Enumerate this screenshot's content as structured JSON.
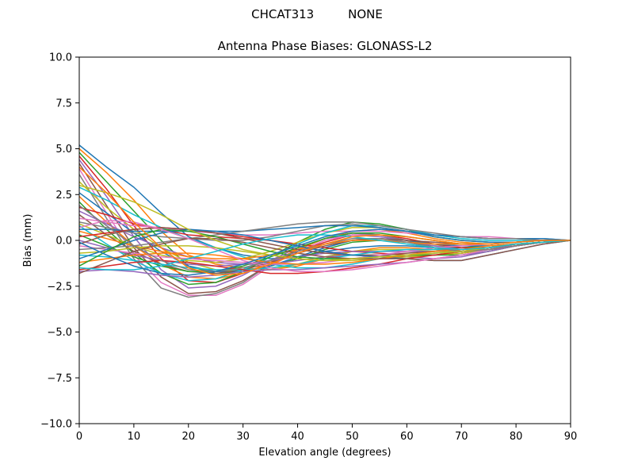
{
  "chart_data": {
    "type": "line",
    "suptitle": "CHCAT313         NONE",
    "title": "Antenna Phase Biases: GLONASS-L2",
    "xlabel": "Elevation angle (degrees)",
    "ylabel": "Bias (mm)",
    "xlim": [
      0,
      90
    ],
    "ylim": [
      -10,
      10
    ],
    "xticks": [
      0,
      10,
      20,
      30,
      40,
      50,
      60,
      70,
      80,
      90
    ],
    "xtick_labels": [
      "0",
      "10",
      "20",
      "30",
      "40",
      "50",
      "60",
      "70",
      "80",
      "90"
    ],
    "yticks": [
      -10,
      -7.5,
      -5,
      -2.5,
      0,
      2.5,
      5,
      7.5,
      10
    ],
    "ytick_labels": [
      "−10.0",
      "−7.5",
      "−5.0",
      "−2.5",
      "0.0",
      "2.5",
      "5.0",
      "7.5",
      "10.0"
    ],
    "grid": false,
    "legend": "none",
    "colors": [
      "#1f77b4",
      "#ff7f0e",
      "#2ca02c",
      "#d62728",
      "#9467bd",
      "#8c564b",
      "#e377c2",
      "#7f7f7f",
      "#bcbd22",
      "#17becf"
    ],
    "x": [
      0,
      5,
      10,
      15,
      20,
      25,
      30,
      35,
      40,
      45,
      50,
      55,
      60,
      65,
      70,
      75,
      80,
      85,
      90
    ],
    "series": [
      {
        "values": [
          5.2,
          4.0,
          2.9,
          1.5,
          0.2,
          -0.4,
          -0.8,
          -1.0,
          -0.9,
          -0.6,
          -0.4,
          -0.3,
          -0.3,
          -0.4,
          -0.4,
          -0.3,
          -0.2,
          -0.1,
          0.0
        ]
      },
      {
        "values": [
          5.0,
          3.7,
          2.2,
          0.5,
          -0.8,
          -1.3,
          -1.5,
          -1.6,
          -1.4,
          -1.0,
          -0.6,
          -0.4,
          -0.4,
          -0.5,
          -0.6,
          -0.5,
          -0.3,
          -0.1,
          0.0
        ]
      },
      {
        "values": [
          4.8,
          3.2,
          1.6,
          0.0,
          -1.4,
          -1.8,
          -1.7,
          -1.4,
          -1.0,
          -0.5,
          -0.1,
          0.0,
          -0.1,
          -0.3,
          -0.4,
          -0.3,
          -0.2,
          -0.1,
          0.0
        ]
      },
      {
        "values": [
          4.6,
          2.8,
          0.8,
          -1.0,
          -2.2,
          -2.3,
          -1.8,
          -1.2,
          -0.6,
          -0.1,
          0.3,
          0.3,
          0.1,
          -0.2,
          -0.4,
          -0.4,
          -0.3,
          -0.1,
          0.0
        ]
      },
      {
        "values": [
          4.4,
          2.4,
          0.2,
          -1.6,
          -2.6,
          -2.5,
          -1.9,
          -1.1,
          -0.4,
          0.1,
          0.3,
          0.2,
          0.0,
          -0.3,
          -0.5,
          -0.4,
          -0.3,
          -0.1,
          0.0
        ]
      },
      {
        "values": [
          4.2,
          1.9,
          -0.4,
          -2.0,
          -2.9,
          -2.8,
          -2.2,
          -1.3,
          -0.5,
          0.1,
          0.4,
          0.3,
          0.0,
          -0.4,
          -0.6,
          -0.5,
          -0.3,
          -0.1,
          0.0
        ]
      },
      {
        "values": [
          3.9,
          1.5,
          -0.8,
          -2.3,
          -3.0,
          -3.0,
          -2.4,
          -1.4,
          -0.6,
          0.0,
          0.3,
          0.3,
          0.0,
          -0.4,
          -0.6,
          -0.5,
          -0.3,
          -0.1,
          0.0
        ]
      },
      {
        "values": [
          3.6,
          1.2,
          -1.0,
          -2.6,
          -3.1,
          -2.9,
          -2.3,
          -1.3,
          -0.5,
          0.1,
          0.4,
          0.3,
          0.0,
          -0.4,
          -0.6,
          -0.5,
          -0.3,
          -0.1,
          0.0
        ]
      },
      {
        "values": [
          3.2,
          1.8,
          0.6,
          -0.4,
          -1.2,
          -1.6,
          -1.7,
          -1.6,
          -1.3,
          -0.9,
          -0.6,
          -0.5,
          -0.5,
          -0.6,
          -0.6,
          -0.5,
          -0.3,
          -0.1,
          0.0
        ]
      },
      {
        "values": [
          2.9,
          2.2,
          1.4,
          0.7,
          0.1,
          -0.4,
          -0.9,
          -1.3,
          -1.5,
          -1.5,
          -1.3,
          -1.0,
          -0.8,
          -0.7,
          -0.6,
          -0.5,
          -0.3,
          -0.1,
          0.0
        ]
      },
      {
        "values": [
          2.6,
          1.5,
          0.4,
          -0.6,
          -1.4,
          -1.7,
          -1.7,
          -1.4,
          -0.9,
          -0.4,
          0.0,
          0.1,
          0.0,
          -0.2,
          -0.3,
          -0.3,
          -0.2,
          -0.1,
          0.0
        ]
      },
      {
        "values": [
          2.4,
          1.0,
          -0.3,
          -1.3,
          -2.0,
          -2.1,
          -1.8,
          -1.2,
          -0.5,
          0.1,
          0.5,
          0.6,
          0.4,
          0.1,
          -0.1,
          -0.2,
          -0.1,
          0.0,
          0.0
        ]
      },
      {
        "values": [
          2.1,
          0.6,
          -0.7,
          -1.8,
          -2.4,
          -2.3,
          -1.7,
          -0.9,
          -0.1,
          0.6,
          1.0,
          0.9,
          0.6,
          0.2,
          0.0,
          -0.1,
          -0.1,
          0.0,
          0.0
        ]
      },
      {
        "values": [
          1.8,
          1.4,
          0.9,
          0.6,
          0.3,
          0.2,
          0.1,
          0.0,
          -0.2,
          -0.4,
          -0.6,
          -0.7,
          -0.8,
          -0.8,
          -0.7,
          -0.5,
          -0.3,
          -0.1,
          0.0
        ]
      },
      {
        "values": [
          1.6,
          0.9,
          0.2,
          -0.4,
          -0.9,
          -1.2,
          -1.3,
          -1.3,
          -1.1,
          -0.9,
          -0.8,
          -0.8,
          -0.9,
          -1.0,
          -0.9,
          -0.6,
          -0.3,
          -0.1,
          0.0
        ]
      },
      {
        "values": [
          1.4,
          0.3,
          -0.6,
          -1.3,
          -1.7,
          -1.8,
          -1.6,
          -1.2,
          -0.7,
          -0.3,
          0.0,
          0.1,
          0.0,
          -0.1,
          -0.2,
          -0.2,
          -0.1,
          0.0,
          0.0
        ]
      },
      {
        "values": [
          1.2,
          1.0,
          0.8,
          0.7,
          0.5,
          0.4,
          0.3,
          0.3,
          0.4,
          0.5,
          0.5,
          0.5,
          0.4,
          0.3,
          0.2,
          0.2,
          0.1,
          0.0,
          0.0
        ]
      },
      {
        "values": [
          1.0,
          0.7,
          0.4,
          0.2,
          0.1,
          0.0,
          0.0,
          0.2,
          0.5,
          0.8,
          0.9,
          0.7,
          0.5,
          0.3,
          0.2,
          0.1,
          0.1,
          0.1,
          0.0
        ]
      },
      {
        "values": [
          0.9,
          0.3,
          -0.3,
          -0.8,
          -1.1,
          -1.2,
          -1.0,
          -0.6,
          -0.1,
          0.4,
          0.7,
          0.7,
          0.5,
          0.2,
          0.0,
          -0.1,
          -0.1,
          0.0,
          0.0
        ]
      },
      {
        "values": [
          0.8,
          -0.2,
          -1.1,
          -1.8,
          -2.2,
          -2.1,
          -1.6,
          -0.9,
          -0.2,
          0.4,
          0.8,
          0.8,
          0.6,
          0.3,
          0.1,
          0.0,
          0.0,
          0.0,
          0.0
        ]
      },
      {
        "values": [
          0.6,
          0.6,
          0.5,
          0.5,
          0.5,
          0.5,
          0.5,
          0.6,
          0.7,
          0.8,
          0.8,
          0.7,
          0.5,
          0.3,
          0.2,
          0.1,
          0.1,
          0.1,
          0.0
        ]
      },
      {
        "values": [
          0.5,
          0.1,
          -0.3,
          -0.6,
          -0.9,
          -1.0,
          -1.0,
          -0.8,
          -0.5,
          -0.2,
          0.0,
          0.0,
          -0.1,
          -0.2,
          -0.2,
          -0.2,
          -0.1,
          0.0,
          0.0
        ]
      },
      {
        "values": [
          0.3,
          -0.3,
          -0.9,
          -1.4,
          -1.7,
          -1.7,
          -1.4,
          -0.9,
          -0.4,
          0.1,
          0.4,
          0.4,
          0.2,
          0.0,
          -0.2,
          -0.2,
          -0.1,
          0.0,
          0.0
        ]
      },
      {
        "values": [
          0.2,
          0.4,
          0.6,
          0.7,
          0.6,
          0.4,
          0.2,
          0.0,
          -0.3,
          -0.6,
          -0.8,
          -0.9,
          -0.9,
          -0.8,
          -0.7,
          -0.5,
          -0.3,
          -0.1,
          0.0
        ]
      },
      {
        "values": [
          0.0,
          -0.4,
          -0.8,
          -1.1,
          -1.3,
          -1.4,
          -1.3,
          -1.1,
          -0.9,
          -0.7,
          -0.6,
          -0.6,
          -0.6,
          -0.6,
          -0.5,
          -0.4,
          -0.2,
          -0.1,
          0.0
        ]
      },
      {
        "values": [
          -0.2,
          0.3,
          0.6,
          0.7,
          0.6,
          0.4,
          0.1,
          -0.2,
          -0.5,
          -0.7,
          -0.8,
          -0.8,
          -0.7,
          -0.6,
          -0.5,
          -0.4,
          -0.2,
          -0.1,
          0.0
        ]
      },
      {
        "values": [
          -0.3,
          -0.5,
          -0.7,
          -0.9,
          -1.0,
          -1.1,
          -1.2,
          -1.3,
          -1.3,
          -1.2,
          -1.0,
          -0.8,
          -0.6,
          -0.4,
          -0.3,
          -0.2,
          -0.1,
          0.0,
          0.0
        ]
      },
      {
        "values": [
          -0.5,
          -0.4,
          -0.3,
          -0.1,
          0.1,
          0.3,
          0.5,
          0.7,
          0.9,
          1.0,
          1.0,
          0.8,
          0.6,
          0.4,
          0.2,
          0.1,
          0.1,
          0.0,
          0.0
        ]
      },
      {
        "values": [
          -0.7,
          -0.6,
          -0.4,
          -0.3,
          -0.3,
          -0.4,
          -0.6,
          -0.8,
          -1.0,
          -1.1,
          -1.1,
          -1.0,
          -0.9,
          -0.8,
          -0.7,
          -0.5,
          -0.3,
          -0.1,
          0.0
        ]
      },
      {
        "values": [
          -0.8,
          -0.9,
          -1.1,
          -1.3,
          -1.5,
          -1.6,
          -1.6,
          -1.5,
          -1.3,
          -1.0,
          -0.8,
          -0.6,
          -0.5,
          -0.5,
          -0.5,
          -0.4,
          -0.2,
          -0.1,
          0.0
        ]
      },
      {
        "values": [
          -1.0,
          -0.5,
          0.0,
          0.4,
          0.6,
          0.5,
          0.3,
          0.0,
          -0.3,
          -0.6,
          -0.8,
          -0.9,
          -1.0,
          -1.1,
          -1.1,
          -0.8,
          -0.5,
          -0.2,
          0.0
        ]
      },
      {
        "values": [
          -1.2,
          -1.0,
          -0.8,
          -0.7,
          -0.7,
          -0.8,
          -1.0,
          -1.2,
          -1.3,
          -1.3,
          -1.2,
          -1.0,
          -0.8,
          -0.6,
          -0.5,
          -0.3,
          -0.2,
          -0.1,
          0.0
        ]
      },
      {
        "values": [
          -1.4,
          -0.6,
          0.2,
          0.6,
          0.5,
          0.2,
          -0.2,
          -0.6,
          -0.9,
          -1.0,
          -1.0,
          -0.9,
          -0.8,
          -0.8,
          -0.8,
          -0.6,
          -0.3,
          -0.1,
          0.0
        ]
      },
      {
        "values": [
          -1.6,
          -1.4,
          -1.2,
          -1.1,
          -1.2,
          -1.4,
          -1.6,
          -1.8,
          -1.8,
          -1.7,
          -1.5,
          -1.3,
          -1.0,
          -0.8,
          -0.6,
          -0.4,
          -0.2,
          -0.1,
          0.0
        ]
      },
      {
        "values": [
          -1.7,
          -1.6,
          -1.7,
          -1.9,
          -2.0,
          -1.9,
          -1.7,
          -1.6,
          -1.6,
          -1.5,
          -1.4,
          -1.3,
          -1.2,
          -1.0,
          -0.8,
          -0.6,
          -0.3,
          -0.1,
          0.0
        ]
      },
      {
        "values": [
          -1.8,
          -1.2,
          -0.6,
          -0.2,
          0.1,
          0.1,
          -0.1,
          -0.4,
          -0.7,
          -0.9,
          -1.0,
          -1.0,
          -1.0,
          -1.1,
          -1.1,
          -0.8,
          -0.5,
          -0.2,
          0.0
        ]
      },
      {
        "values": [
          0.7,
          1.1,
          1.0,
          0.6,
          0.1,
          -0.5,
          -1.1,
          -1.5,
          -1.7,
          -1.7,
          -1.6,
          -1.4,
          -1.2,
          -1.0,
          -0.8,
          -0.5,
          -0.3,
          -0.1,
          0.0
        ]
      },
      {
        "values": [
          1.9,
          0.8,
          -0.3,
          -1.1,
          -1.6,
          -1.7,
          -1.5,
          -1.1,
          -0.6,
          -0.2,
          0.1,
          0.1,
          -0.1,
          -0.4,
          -0.6,
          -0.5,
          -0.3,
          -0.1,
          0.0
        ]
      },
      {
        "values": [
          3.0,
          2.6,
          2.1,
          1.4,
          0.6,
          0.0,
          -0.5,
          -0.8,
          -1.0,
          -1.1,
          -1.0,
          -0.9,
          -0.8,
          -0.7,
          -0.6,
          -0.4,
          -0.2,
          -0.1,
          0.0
        ]
      },
      {
        "values": [
          -1.5,
          -1.6,
          -1.6,
          -1.4,
          -1.0,
          -0.6,
          -0.2,
          0.1,
          0.3,
          0.3,
          0.2,
          0.0,
          -0.2,
          -0.4,
          -0.5,
          -0.4,
          -0.2,
          -0.1,
          0.0
        ]
      },
      {
        "values": [
          -0.1,
          -0.8,
          -1.4,
          -1.8,
          -1.9,
          -1.7,
          -1.3,
          -0.8,
          -0.3,
          0.2,
          0.5,
          0.6,
          0.5,
          0.2,
          0.0,
          -0.1,
          -0.1,
          0.0,
          0.0
        ]
      },
      {
        "values": [
          4.0,
          2.6,
          1.0,
          -0.4,
          -1.5,
          -1.9,
          -1.8,
          -1.3,
          -0.7,
          -0.2,
          0.2,
          0.3,
          0.2,
          0.0,
          -0.2,
          -0.2,
          -0.1,
          0.0,
          0.0
        ]
      }
    ]
  }
}
